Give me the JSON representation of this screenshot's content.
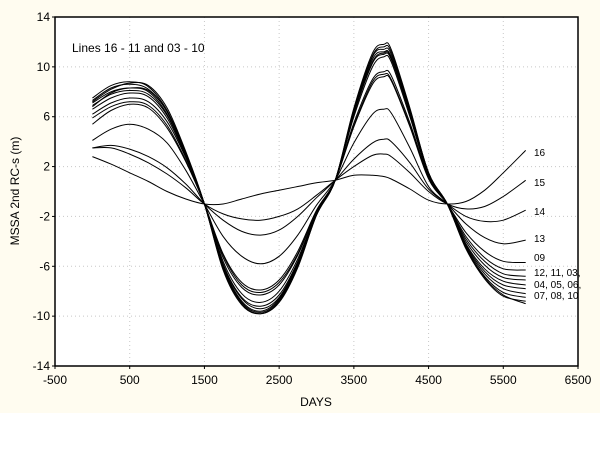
{
  "chart_data": {
    "type": "line",
    "title": "Lines 16 - 11 and 03 - 10",
    "xlabel": "DAYS",
    "ylabel": "MSSA 2nd RC-s (m)",
    "xlim": [
      -500,
      6500
    ],
    "ylim": [
      -14,
      14
    ],
    "xticks": [
      -500,
      500,
      1500,
      2500,
      3500,
      4500,
      5500,
      6500
    ],
    "yticks": [
      14,
      10,
      6,
      2,
      -2,
      -6,
      -10,
      -14
    ],
    "grid": "dotted",
    "x": [
      0,
      250,
      500,
      750,
      1000,
      1250,
      1500,
      1750,
      2000,
      2250,
      2500,
      2750,
      3000,
      3250,
      3500,
      3750,
      3900,
      4000,
      4250,
      4500,
      4750,
      5000,
      5250,
      5500,
      5800
    ],
    "series": [
      {
        "name": "16",
        "values": [
          2.8,
          2.2,
          1.5,
          0.8,
          0.0,
          -0.6,
          -1.0,
          -1.0,
          -0.6,
          -0.2,
          0.1,
          0.4,
          0.7,
          0.9,
          1.3,
          1.3,
          1.2,
          1.0,
          0.2,
          -0.7,
          -1.0,
          -0.8,
          0.1,
          1.5,
          3.3
        ]
      },
      {
        "name": "15",
        "values": [
          3.5,
          3.5,
          3.0,
          2.3,
          1.4,
          0.3,
          -1.0,
          -1.8,
          -2.2,
          -2.3,
          -2.0,
          -1.4,
          -0.3,
          0.9,
          2.0,
          2.9,
          3.0,
          2.8,
          1.5,
          0.0,
          -1.0,
          -1.4,
          -1.2,
          -0.4,
          0.9
        ]
      },
      {
        "name": "14",
        "values": [
          3.5,
          3.7,
          3.4,
          2.8,
          1.9,
          0.6,
          -1.0,
          -2.3,
          -3.2,
          -3.5,
          -3.1,
          -2.0,
          -0.5,
          0.9,
          2.6,
          3.9,
          4.2,
          4.0,
          2.3,
          0.2,
          -1.0,
          -2.0,
          -2.4,
          -2.3,
          -1.5
        ]
      },
      {
        "name": "13",
        "values": [
          4.1,
          5.0,
          5.4,
          5.0,
          3.9,
          1.7,
          -1.0,
          -3.6,
          -5.2,
          -5.8,
          -5.2,
          -3.5,
          -1.1,
          0.9,
          3.9,
          6.2,
          6.6,
          6.3,
          3.5,
          0.4,
          -1.0,
          -2.6,
          -3.7,
          -4.2,
          -3.9
        ]
      },
      {
        "name": "09",
        "values": [
          5.4,
          6.5,
          7.0,
          6.7,
          5.1,
          2.4,
          -1.0,
          -5.0,
          -7.3,
          -7.9,
          -7.1,
          -4.8,
          -1.5,
          0.9,
          5.2,
          8.6,
          9.2,
          8.9,
          5.2,
          1.0,
          -1.0,
          -3.3,
          -4.8,
          -5.6,
          -5.7
        ]
      },
      {
        "name": "12",
        "values": [
          5.9,
          6.8,
          7.2,
          6.9,
          5.3,
          2.5,
          -1.0,
          -5.1,
          -7.5,
          -8.1,
          -7.3,
          -5.0,
          -1.6,
          0.9,
          5.3,
          8.8,
          9.4,
          9.0,
          5.3,
          1.1,
          -1.0,
          -3.6,
          -5.3,
          -6.2,
          -6.3
        ]
      },
      {
        "name": "11",
        "values": [
          6.2,
          7.1,
          7.5,
          7.2,
          5.6,
          2.7,
          -1.0,
          -5.3,
          -7.7,
          -8.3,
          -7.5,
          -5.1,
          -1.6,
          0.9,
          5.5,
          9.0,
          9.6,
          9.3,
          5.5,
          1.2,
          -1.0,
          -3.8,
          -5.6,
          -6.6,
          -6.8
        ]
      },
      {
        "name": "03",
        "values": [
          6.6,
          7.5,
          7.9,
          7.6,
          5.9,
          2.8,
          -1.0,
          -5.6,
          -8.2,
          -8.9,
          -8.0,
          -5.4,
          -1.7,
          0.9,
          6.0,
          10.0,
          10.8,
          10.4,
          6.0,
          1.3,
          -1.0,
          -4.0,
          -5.9,
          -6.9,
          -7.1
        ]
      },
      {
        "name": "04",
        "values": [
          6.9,
          7.8,
          8.1,
          7.8,
          6.1,
          2.9,
          -1.0,
          -5.8,
          -8.5,
          -9.2,
          -8.3,
          -5.6,
          -1.7,
          0.9,
          6.2,
          10.3,
          11.0,
          10.6,
          6.2,
          1.3,
          -1.0,
          -4.2,
          -6.2,
          -7.2,
          -7.5
        ]
      },
      {
        "name": "05",
        "values": [
          7.1,
          8.0,
          8.3,
          8.0,
          6.2,
          2.9,
          -1.0,
          -5.9,
          -8.6,
          -9.4,
          -8.5,
          -5.7,
          -1.8,
          0.9,
          6.3,
          10.4,
          11.1,
          10.7,
          6.3,
          1.4,
          -1.0,
          -4.3,
          -6.4,
          -7.5,
          -7.8
        ]
      },
      {
        "name": "06",
        "values": [
          7.3,
          8.3,
          8.6,
          8.2,
          6.4,
          3.0,
          -1.0,
          -6.0,
          -8.8,
          -9.6,
          -8.6,
          -5.8,
          -1.8,
          0.9,
          6.4,
          10.6,
          11.2,
          10.8,
          6.4,
          1.4,
          -1.0,
          -4.4,
          -6.6,
          -7.8,
          -8.2
        ]
      },
      {
        "name": "07",
        "values": [
          7.5,
          8.5,
          8.8,
          8.4,
          6.5,
          3.1,
          -1.0,
          -6.1,
          -8.9,
          -9.7,
          -8.7,
          -5.9,
          -1.8,
          0.9,
          6.5,
          10.8,
          11.4,
          11.0,
          6.5,
          1.5,
          -1.0,
          -4.5,
          -6.8,
          -8.1,
          -8.5
        ]
      },
      {
        "name": "08",
        "values": [
          7.2,
          8.2,
          8.7,
          8.5,
          6.7,
          3.2,
          -1.0,
          -6.3,
          -9.1,
          -9.8,
          -8.8,
          -6.0,
          -1.9,
          0.9,
          6.7,
          11.1,
          11.8,
          11.4,
          6.7,
          1.5,
          -1.0,
          -4.6,
          -7.0,
          -8.4,
          -8.8
        ]
      },
      {
        "name": "10",
        "values": [
          6.8,
          7.9,
          8.3,
          8.1,
          6.4,
          3.1,
          -1.0,
          -6.2,
          -9.0,
          -9.8,
          -8.9,
          -6.1,
          -1.9,
          0.9,
          6.6,
          10.9,
          11.6,
          11.2,
          6.6,
          1.5,
          -1.0,
          -4.5,
          -6.9,
          -8.3,
          -9.0
        ]
      }
    ],
    "annotations": [
      {
        "text": "16",
        "y": 3.3
      },
      {
        "text": "15",
        "y": 0.9
      },
      {
        "text": "14",
        "y": -1.5
      },
      {
        "text": "13",
        "y": -3.9
      },
      {
        "text": "09",
        "y": -5.7
      },
      {
        "text": "12, 11, 03,",
        "y": -6.8
      },
      {
        "text": "04, 05, 06,",
        "y": -7.8
      },
      {
        "text": "07, 08, 10",
        "y": -8.8
      }
    ]
  },
  "labels": {
    "title": "Lines 16 - 11 and 03 - 10",
    "xlabel": "DAYS",
    "ylabel": "MSSA 2nd RC-s (m)"
  }
}
